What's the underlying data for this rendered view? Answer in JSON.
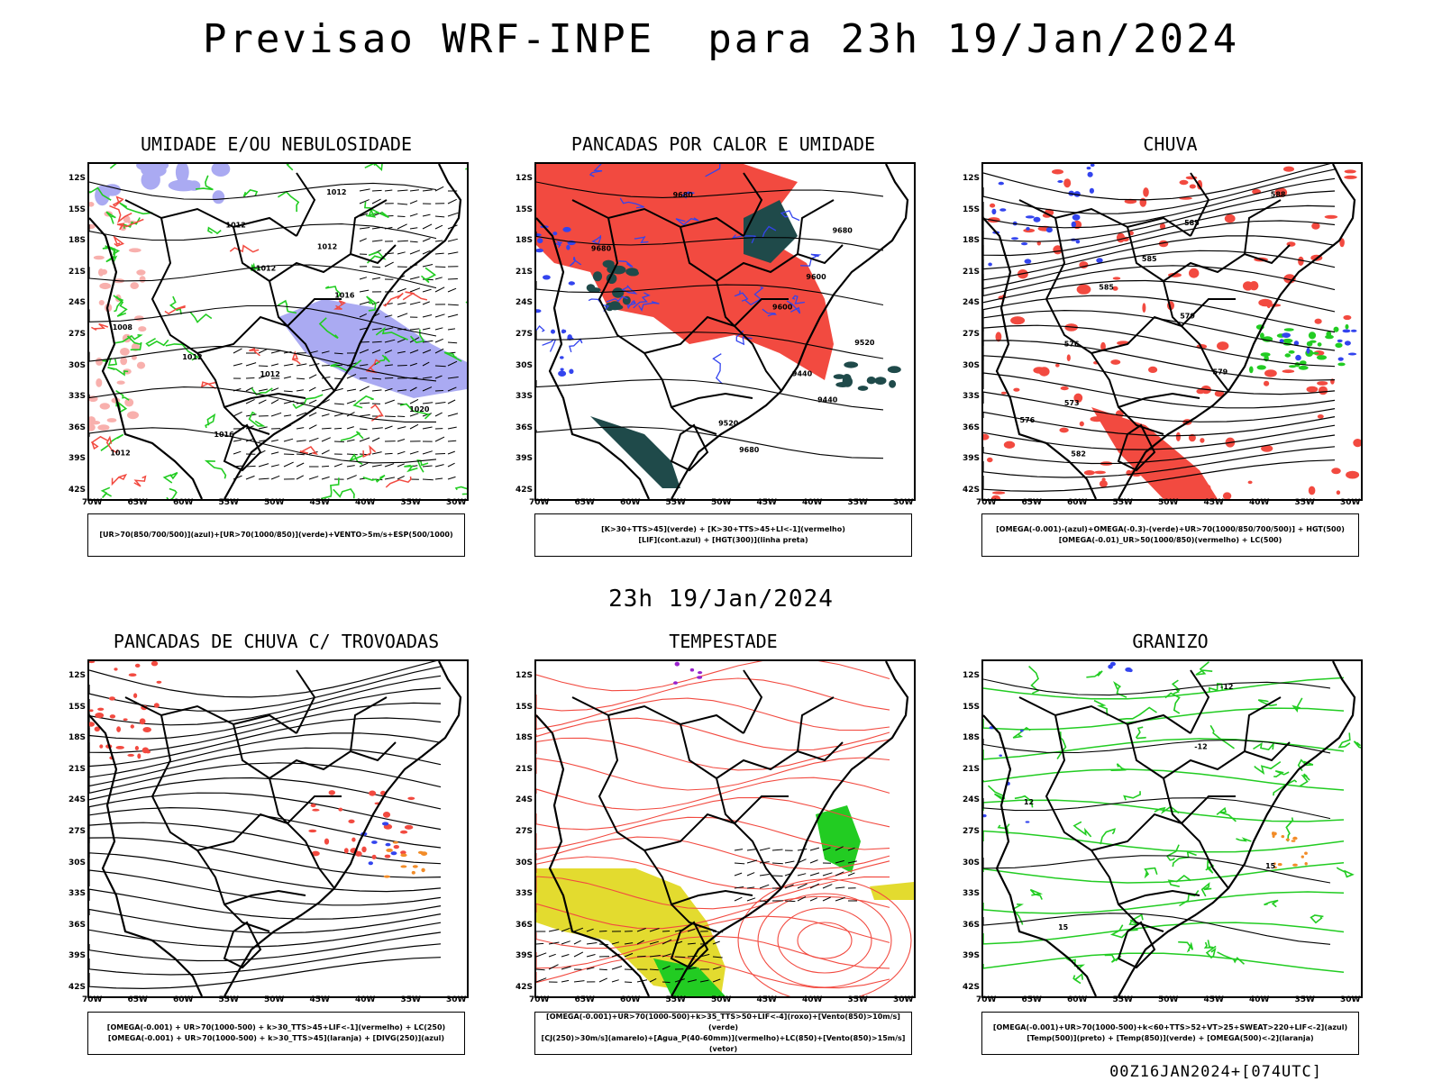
{
  "page_title": "Previsao WRF-INPE  para 23h 19/Jan/2024",
  "mid_title": "23h 19/Jan/2024",
  "footer": "00Z16JAN2024+[074UTC]",
  "lat_ticks": [
    "12S",
    "15S",
    "18S",
    "21S",
    "24S",
    "27S",
    "30S",
    "33S",
    "36S",
    "39S",
    "42S"
  ],
  "lon_ticks": [
    "70W",
    "65W",
    "60W",
    "55W",
    "50W",
    "45W",
    "40W",
    "35W",
    "30W"
  ],
  "colors": {
    "red": "#f24a40",
    "green": "#22cc22",
    "blue": "#3344ee",
    "lavender": "#aaaaf2",
    "darkteal": "#1f4a4a",
    "yellow": "#e3db2f",
    "orange": "#f28c28"
  },
  "panels": [
    {
      "title": "UMIDADE E/OU NEBULOSIDADE",
      "legend": [
        "[UR>70(850/700/500)](azul)+[UR>70(1000/850)](verde)+VENTO>5m/s+ESP(500/1000)"
      ],
      "contour_labels": [
        "1012",
        "1012",
        "1012",
        "1012",
        "1016",
        "1008",
        "1012",
        "1012",
        "1020",
        "1016",
        "1012"
      ]
    },
    {
      "title": "PANCADAS POR CALOR E UMIDADE",
      "legend": [
        "[K>30+TTS>45](verde) + [K>30+TTS>45+LI<-1](vermelho)",
        "[LIF](cont.azul) + [HGT(300)](linha preta)"
      ],
      "contour_labels": [
        "9680",
        "9680",
        "9680",
        "9600",
        "9600",
        "9520",
        "9440",
        "9440",
        "9520",
        "9680"
      ]
    },
    {
      "title": "CHUVA",
      "legend": [
        "[OMEGA(-0.001)-(azul)+OMEGA(-0.3)-(verde)+UR>70(1000/850/700/500)] + HGT(500)",
        "[OMEGA(-0.01)_UR>50(1000/850)(vermelho) + LC(500)"
      ],
      "contour_labels": [
        "588",
        "585",
        "585",
        "585",
        "579",
        "576",
        "579",
        "573",
        "576",
        "582"
      ]
    },
    {
      "title": "PANCADAS DE CHUVA C/ TROVOADAS",
      "legend": [
        "[OMEGA(-0.001) + UR>70(1000-500) + k>30_TTS>45+LIF<-1](vermelho) + LC(250)",
        "[OMEGA(-0.001) + UR>70(1000-500) + k>30_TTS>45](laranja) + [DIVG(250)](azul)"
      ],
      "contour_labels": []
    },
    {
      "title": "TEMPESTADE",
      "legend": [
        "[OMEGA(-0.001)+UR>70(1000-500)+k>35_TTS>50+LIF<-4](roxo)+[Vento(850)>10m/s](verde)",
        "[CJ(250)>30m/s](amarelo)+[Agua_P(40-60mm)](vermelho)+LC(850)+[Vento(850)>15m/s](vetor)"
      ],
      "contour_labels": []
    },
    {
      "title": "GRANIZO",
      "legend": [
        "[OMEGA(-0.001)+UR>70(1000-500)+k<60+TTS>52+VT>25+SWEAT>220+LIF<-2](azul)",
        "[Temp(500)](preto) + [Temp(850)](verde) + [OMEGA(500)<-2](laranja)"
      ],
      "contour_labels": [
        "-12",
        "-12",
        "12",
        "15",
        "15"
      ]
    }
  ]
}
